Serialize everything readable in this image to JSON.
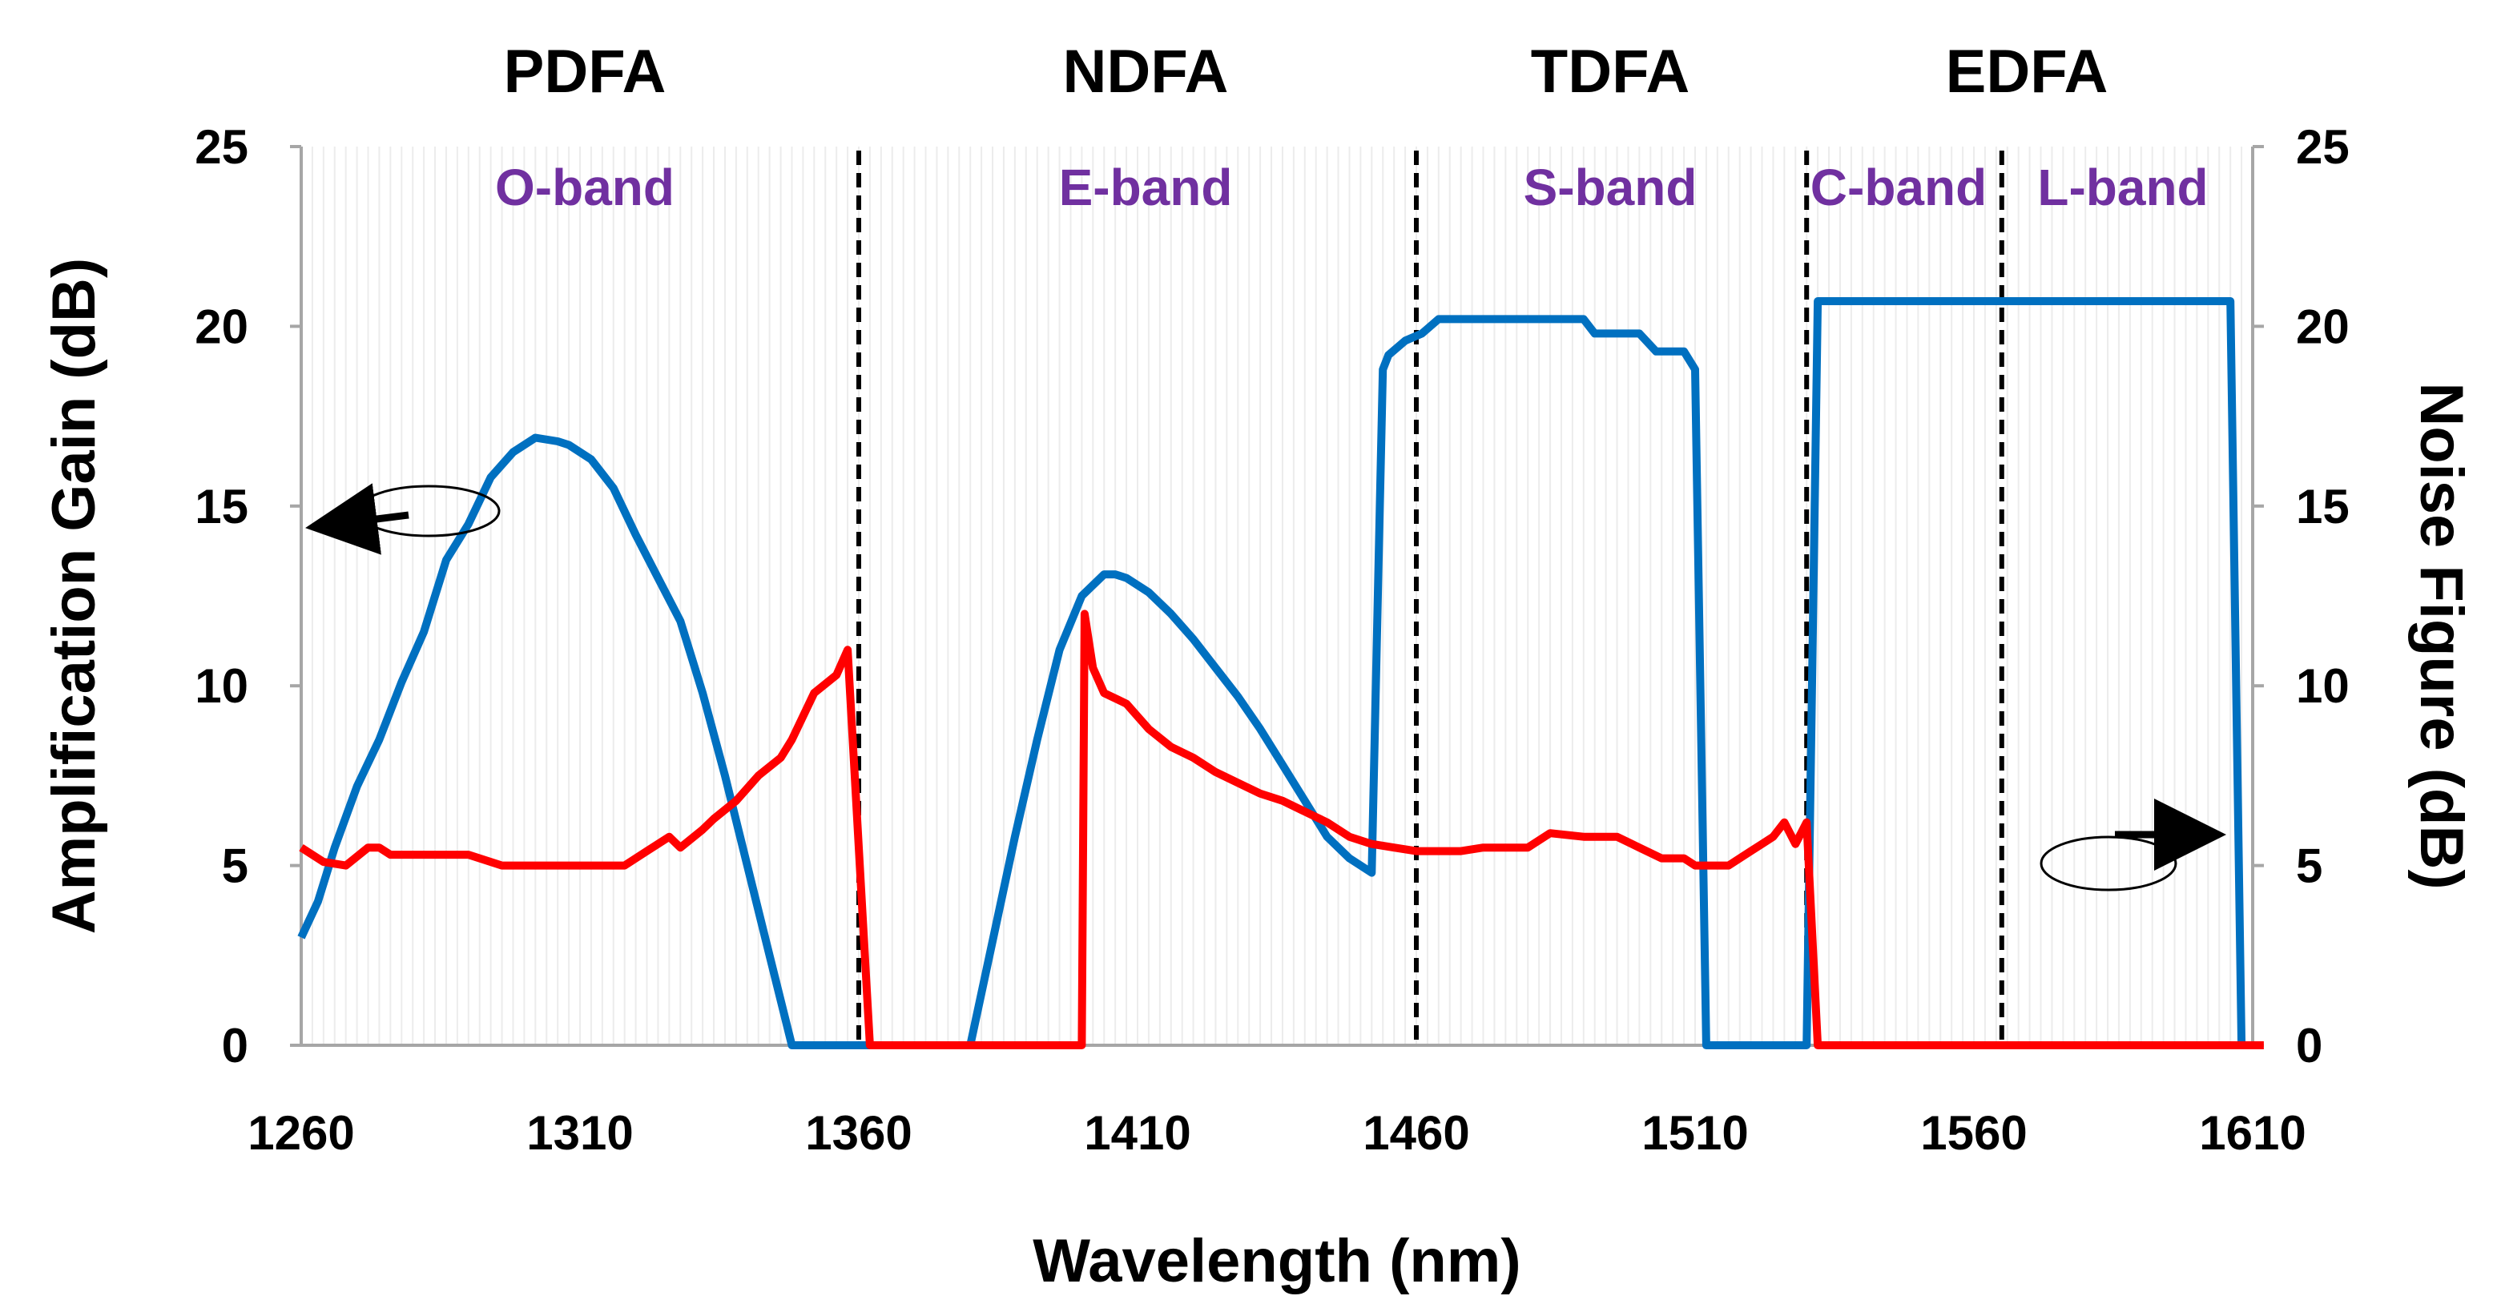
{
  "chart_data": {
    "type": "line",
    "xlabel": "Wavelength (nm)",
    "ylabel_left": "Amplification Gain (dB)",
    "ylabel_right": "Noise Figure (dB)",
    "xlim": [
      1260,
      1610
    ],
    "ylim_left": [
      0,
      25
    ],
    "ylim_right": [
      0,
      25
    ],
    "x_ticks": [
      "1260",
      "1310",
      "1360",
      "1410",
      "1460",
      "1510",
      "1560",
      "1610"
    ],
    "y_ticks_left": [
      "0",
      "5",
      "10",
      "15",
      "20",
      "25"
    ],
    "y_ticks_right": [
      "0",
      "5",
      "10",
      "15",
      "20",
      "25"
    ],
    "amplifiers": [
      {
        "label": "PDFA",
        "x": 1310
      },
      {
        "label": "NDFA",
        "x": 1410
      },
      {
        "label": "TDFA",
        "x": 1493
      },
      {
        "label": "EDFA",
        "x": 1565
      }
    ],
    "bands": [
      {
        "label": "O-band",
        "x": 1310
      },
      {
        "label": "E-band",
        "x": 1410
      },
      {
        "label": "S-band",
        "x": 1493
      },
      {
        "label": "C-band",
        "x": 1547
      },
      {
        "label": "L-band",
        "x": 1587
      }
    ],
    "band_boundaries": [
      1360,
      1460,
      1530,
      1565
    ],
    "colors": {
      "gain": "#0070c0",
      "noise": "#ff0000",
      "band_text": "#7030a0"
    },
    "series": [
      {
        "name": "Amplification Gain",
        "axis": "left",
        "color": "#0070c0",
        "x": [
          1260,
          1263,
          1266,
          1270,
          1274,
          1278,
          1282,
          1286,
          1290,
          1294,
          1298,
          1302,
          1306,
          1308,
          1312,
          1316,
          1320,
          1324,
          1328,
          1332,
          1336,
          1340,
          1344,
          1348,
          1351,
          1353,
          1360,
          1380,
          1388,
          1392,
          1396,
          1400,
          1404,
          1406,
          1408,
          1412,
          1416,
          1420,
          1424,
          1428,
          1432,
          1436,
          1440,
          1444,
          1448,
          1452,
          1454,
          1455,
          1458,
          1461,
          1464,
          1468,
          1472,
          1480,
          1490,
          1492,
          1500,
          1503,
          1508,
          1510,
          1512,
          1515,
          1530,
          1532,
          1606,
          1608,
          1610
        ],
        "y": [
          3.0,
          4.0,
          5.5,
          7.2,
          8.5,
          10.1,
          11.5,
          13.5,
          14.5,
          15.8,
          16.5,
          16.9,
          16.8,
          16.7,
          16.3,
          15.5,
          14.2,
          13.0,
          11.8,
          9.8,
          7.5,
          5.0,
          2.5,
          0,
          0,
          0,
          0,
          0,
          5.8,
          8.5,
          11.0,
          12.5,
          13.1,
          13.1,
          13.0,
          12.6,
          12.0,
          11.3,
          10.5,
          9.7,
          8.8,
          7.8,
          6.8,
          5.8,
          5.2,
          4.8,
          18.8,
          19.2,
          19.6,
          19.8,
          20.2,
          20.2,
          20.2,
          20.2,
          20.2,
          19.8,
          19.8,
          19.3,
          19.3,
          18.8,
          0,
          0,
          0,
          20.7,
          20.7,
          0,
          0
        ]
      },
      {
        "name": "Noise Figure",
        "axis": "right",
        "color": "#ff0000",
        "x": [
          1260,
          1264,
          1268,
          1272,
          1274,
          1276,
          1282,
          1290,
          1296,
          1302,
          1310,
          1318,
          1322,
          1326,
          1328,
          1332,
          1334,
          1338,
          1342,
          1346,
          1348,
          1352,
          1356,
          1358,
          1362,
          1368,
          1370,
          1372,
          1374,
          1378,
          1380,
          1400,
          1400.5,
          1402,
          1404,
          1408,
          1412,
          1416,
          1420,
          1424,
          1428,
          1432,
          1436,
          1440,
          1444,
          1448,
          1452,
          1456,
          1460,
          1464,
          1468,
          1472,
          1476,
          1480,
          1484,
          1490,
          1496,
          1500,
          1504,
          1508,
          1510,
          1512,
          1516,
          1518,
          1520,
          1522,
          1524,
          1526,
          1528,
          1530,
          1532,
          1534,
          1536,
          1538,
          1544,
          1548,
          1552,
          1556,
          1560,
          1566,
          1572,
          1578,
          1584,
          1586,
          1590,
          1596,
          1600,
          1604,
          1608,
          1610,
          1612
        ],
        "y": [
          5.5,
          5.1,
          5.0,
          5.5,
          5.5,
          5.3,
          5.3,
          5.3,
          5.0,
          5.0,
          5.0,
          5.0,
          5.4,
          5.8,
          5.5,
          6.0,
          6.3,
          6.8,
          7.5,
          8.0,
          8.5,
          9.8,
          10.3,
          11.0,
          0,
          0,
          0,
          0,
          0,
          0,
          0,
          0,
          12.0,
          10.5,
          9.8,
          9.5,
          8.8,
          8.3,
          8.0,
          7.6,
          7.3,
          7.0,
          6.8,
          6.5,
          6.2,
          5.8,
          5.6,
          5.5,
          5.4,
          5.4,
          5.4,
          5.5,
          5.5,
          5.5,
          5.9,
          5.8,
          5.8,
          5.5,
          5.2,
          5.2,
          5.0,
          5.0,
          5.0,
          5.2,
          5.4,
          5.6,
          5.8,
          6.2,
          5.6,
          6.2,
          0,
          0,
          0,
          0,
          0,
          0,
          0,
          0,
          0,
          0,
          0,
          0,
          0,
          0,
          0,
          0,
          0,
          0,
          0,
          0,
          0
        ]
      }
    ]
  }
}
